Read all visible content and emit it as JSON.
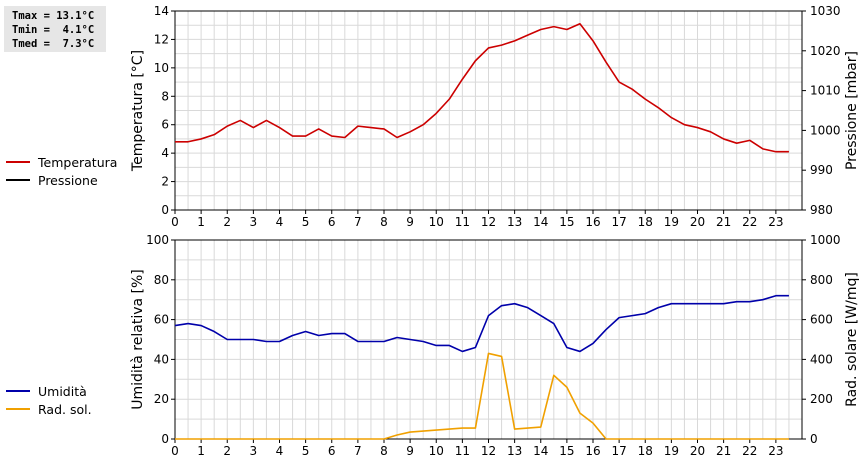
{
  "stats": {
    "tmax": "Tmax = 13.1°C",
    "tmin": "Tmin =  4.1°C",
    "tmed": "Tmed =  7.3°C"
  },
  "chart_data": [
    {
      "type": "line",
      "ylabel": "Temperatura [°C]",
      "y2label": "Pressione [mbar]",
      "ylim": [
        0,
        14
      ],
      "y2lim": [
        980,
        1030
      ],
      "yticks": [
        0,
        2,
        4,
        6,
        8,
        10,
        12,
        14
      ],
      "y2ticks": [
        980,
        990,
        1000,
        1010,
        1020,
        1030
      ],
      "xticks": [
        0,
        1,
        2,
        3,
        4,
        5,
        6,
        7,
        8,
        9,
        10,
        11,
        12,
        13,
        14,
        15,
        16,
        17,
        18,
        19,
        20,
        21,
        22,
        23
      ],
      "grid": true,
      "legend_position": "left",
      "series": [
        {
          "name": "Temperatura",
          "color": "#cc0000",
          "x": [
            0,
            0.5,
            1,
            1.5,
            2,
            2.5,
            3,
            3.5,
            4,
            4.5,
            5,
            5.5,
            6,
            6.5,
            7,
            7.5,
            8,
            8.5,
            9,
            9.5,
            10,
            10.5,
            11,
            11.5,
            12,
            12.5,
            13,
            13.5,
            14,
            14.5,
            15,
            15.5,
            16,
            16.5,
            17,
            17.5,
            18,
            18.5,
            19,
            19.5,
            20,
            20.5,
            21,
            21.5,
            22,
            22.5,
            23,
            23.5
          ],
          "values": [
            4.8,
            4.8,
            5.0,
            5.3,
            5.9,
            6.3,
            5.8,
            6.3,
            5.8,
            5.2,
            5.2,
            5.7,
            5.2,
            5.1,
            5.9,
            5.8,
            5.7,
            5.1,
            5.5,
            6.0,
            6.8,
            7.8,
            9.2,
            10.5,
            11.4,
            11.6,
            11.9,
            12.3,
            12.7,
            12.9,
            12.7,
            13.1,
            11.9,
            10.4,
            9.0,
            8.5,
            7.8,
            7.2,
            6.5,
            6.0,
            5.8,
            5.5,
            5.0,
            4.7,
            4.9,
            4.3,
            4.1,
            4.1
          ]
        },
        {
          "name": "Pressione",
          "color": "#000000",
          "x": [],
          "values": []
        }
      ]
    },
    {
      "type": "line",
      "ylabel": "Umidità relativa [%]",
      "y2label": "Rad. solare [W/mq]",
      "ylim": [
        0,
        100
      ],
      "y2lim": [
        0,
        1000
      ],
      "yticks": [
        0,
        20,
        40,
        60,
        80,
        100
      ],
      "y2ticks": [
        0,
        200,
        400,
        600,
        800,
        1000
      ],
      "xticks": [
        0,
        1,
        2,
        3,
        4,
        5,
        6,
        7,
        8,
        9,
        10,
        11,
        12,
        13,
        14,
        15,
        16,
        17,
        18,
        19,
        20,
        21,
        22,
        23
      ],
      "grid": true,
      "legend_position": "left",
      "series": [
        {
          "name": "Umidità",
          "color": "#0000aa",
          "axis": "left",
          "x": [
            0,
            0.5,
            1,
            1.5,
            2,
            2.5,
            3,
            3.5,
            4,
            4.5,
            5,
            5.5,
            6,
            6.5,
            7,
            7.5,
            8,
            8.5,
            9,
            9.5,
            10,
            10.5,
            11,
            11.5,
            12,
            12.5,
            13,
            13.5,
            14,
            14.5,
            15,
            15.5,
            16,
            16.5,
            17,
            17.5,
            18,
            18.5,
            19,
            19.5,
            20,
            20.5,
            21,
            21.5,
            22,
            22.5,
            23,
            23.5
          ],
          "values": [
            57,
            58,
            57,
            54,
            50,
            50,
            50,
            49,
            49,
            52,
            54,
            52,
            53,
            53,
            49,
            49,
            49,
            51,
            50,
            49,
            47,
            47,
            44,
            46,
            62,
            67,
            68,
            66,
            62,
            58,
            46,
            44,
            48,
            55,
            61,
            62,
            63,
            66,
            68,
            68,
            68,
            68,
            68,
            69,
            69,
            70,
            72,
            72
          ]
        },
        {
          "name": "Rad. sol.",
          "color": "#f0a000",
          "axis": "right",
          "x": [
            0,
            1,
            2,
            3,
            4,
            5,
            6,
            7,
            8,
            8.5,
            9,
            9.5,
            10,
            10.5,
            11,
            11.5,
            12,
            12.5,
            13,
            13.5,
            14,
            14.5,
            15,
            15.5,
            16,
            16.5,
            17,
            18,
            19,
            20,
            21,
            22,
            23,
            23.5
          ],
          "values": [
            0,
            0,
            0,
            0,
            0,
            0,
            0,
            0,
            0,
            20,
            35,
            40,
            45,
            50,
            55,
            55,
            430,
            415,
            50,
            55,
            60,
            320,
            260,
            130,
            80,
            0,
            0,
            0,
            0,
            0,
            0,
            0,
            0,
            0
          ]
        }
      ]
    }
  ]
}
